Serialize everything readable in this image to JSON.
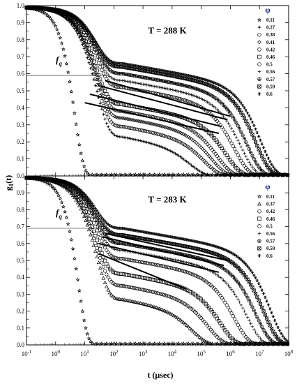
{
  "figure": {
    "xlabel": "t (μsec)",
    "ylabel_main": "g",
    "ylabel_sub": "1",
    "ylabel_tail": "(t)",
    "x_tick_exponents": [
      "-1",
      "0",
      "1",
      "2",
      "3",
      "4",
      "5",
      "6",
      "7",
      "8"
    ],
    "x_tick_base": "10"
  },
  "chart_data": [
    {
      "type": "scatter",
      "title": "T = 288 K",
      "legend_title": "φ",
      "xscale": "log",
      "xlim": [
        0.1,
        100000000
      ],
      "ylim": [
        0.0,
        1.0
      ],
      "yticks": [
        "0.0",
        "0.1",
        "0.2",
        "0.3",
        "0.4",
        "0.5",
        "0.6",
        "0.7",
        "0.8",
        "0.9",
        "1.0"
      ],
      "annotation": {
        "label": "f",
        "sub": "q",
        "y": 0.59
      },
      "legend_position": "right",
      "series": [
        {
          "name": "0.11",
          "marker": "star",
          "plateau": null,
          "tau": 4.5
        },
        {
          "name": "0.27",
          "marker": "cross",
          "plateau": 0.23,
          "tau": 50000
        },
        {
          "name": "0.38",
          "marker": "circle",
          "plateau": 0.29,
          "tau": 150000
        },
        {
          "name": "0.41",
          "marker": "diamond",
          "plateau": 0.34,
          "tau": 250000
        },
        {
          "name": "0.42",
          "marker": "circle",
          "plateau": 0.38,
          "tau": 400000
        },
        {
          "name": "0.46",
          "marker": "square",
          "plateau": 0.42,
          "tau": 800000
        },
        {
          "name": "0.5",
          "marker": "circle",
          "plateau": 0.52,
          "tau": 1500000
        },
        {
          "name": "0.56",
          "marker": "plus",
          "plateau": 0.56,
          "tau": 2500000
        },
        {
          "name": "0.57",
          "marker": "circleplus",
          "plateau": 0.6,
          "tau": 4000000
        },
        {
          "name": "0.59",
          "marker": "boxtimes",
          "plateau": 0.64,
          "tau": 8000000
        },
        {
          "name": "0.6",
          "marker": "asterisk",
          "plateau": 0.66,
          "tau": 12000000
        }
      ],
      "fit_lines": [
        {
          "x": [
            10,
            400000
          ],
          "y": [
            0.43,
            0.25
          ]
        },
        {
          "x": [
            15,
            500000
          ],
          "y": [
            0.48,
            0.29
          ]
        },
        {
          "x": [
            30,
            800000
          ],
          "y": [
            0.53,
            0.33
          ]
        },
        {
          "x": [
            50,
            1000000
          ],
          "y": [
            0.56,
            0.35
          ]
        }
      ]
    },
    {
      "type": "scatter",
      "title": "T = 283 K",
      "legend_title": "φ",
      "xscale": "log",
      "xlim": [
        0.1,
        100000000
      ],
      "ylim": [
        0.0,
        1.0
      ],
      "yticks": [
        "0.0",
        "0.1",
        "0.2",
        "0.3",
        "0.4",
        "0.5",
        "0.6",
        "0.7",
        "0.8",
        "0.9"
      ],
      "annotation": {
        "label": "f",
        "sub": "q",
        "y": 0.69
      },
      "legend_position": "right",
      "series": [
        {
          "name": "0.11",
          "marker": "star",
          "plateau": null,
          "tau": 6
        },
        {
          "name": "0.37",
          "marker": "triangle",
          "plateau": 0.27,
          "tau": 60000
        },
        {
          "name": "0.42",
          "marker": "circle",
          "plateau": 0.35,
          "tau": 200000
        },
        {
          "name": "0.46",
          "marker": "square",
          "plateau": 0.42,
          "tau": 500000
        },
        {
          "name": "0.5",
          "marker": "circle",
          "plateau": 0.51,
          "tau": 1500000
        },
        {
          "name": "0.56",
          "marker": "plus",
          "plateau": 0.56,
          "tau": 4000000
        },
        {
          "name": "0.57",
          "marker": "circleplus",
          "plateau": 0.6,
          "tau": 8000000
        },
        {
          "name": "0.59",
          "marker": "boxtimes",
          "plateau": 0.65,
          "tau": 15000000
        },
        {
          "name": "0.6",
          "marker": "asterisk",
          "plateau": 0.69,
          "tau": 25000000
        }
      ],
      "fit_lines": [
        {
          "x": [
            30,
            30000
          ],
          "y": [
            0.54,
            0.33
          ]
        },
        {
          "x": [
            30,
            400000
          ],
          "y": [
            0.6,
            0.43
          ]
        },
        {
          "x": [
            40,
            600000
          ],
          "y": [
            0.64,
            0.47
          ]
        },
        {
          "x": [
            50,
            800000
          ],
          "y": [
            0.66,
            0.5
          ]
        }
      ]
    }
  ]
}
